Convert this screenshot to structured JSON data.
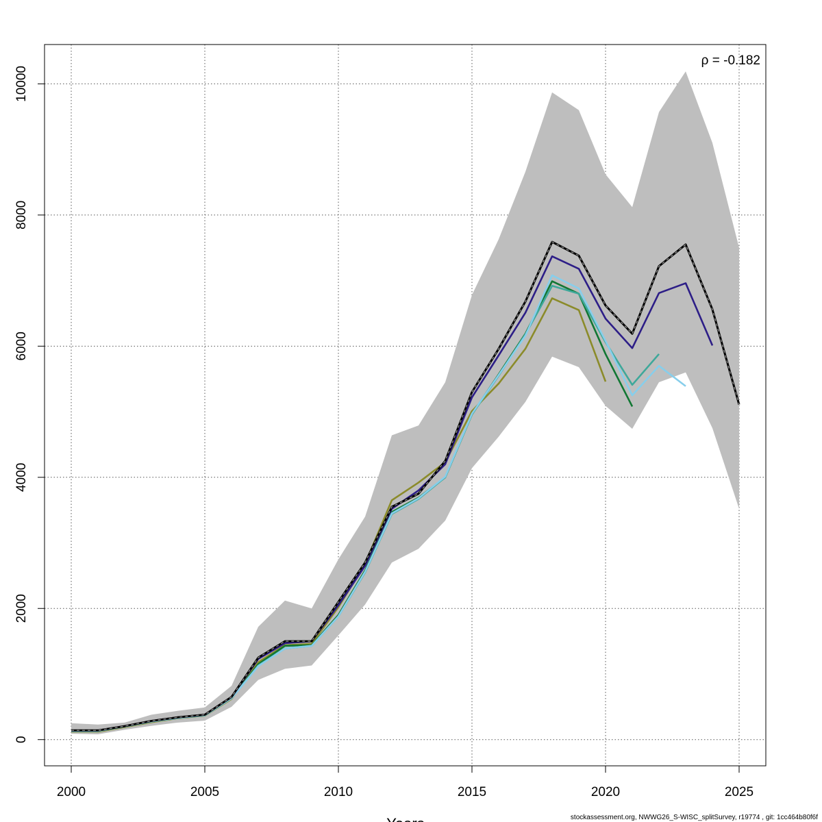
{
  "chart_data": {
    "type": "line",
    "xlabel": "Years",
    "ylabel": "",
    "xlim": [
      1999,
      2026
    ],
    "ylim": [
      -400,
      10600
    ],
    "x_ticks": [
      2000,
      2005,
      2010,
      2015,
      2020,
      2025
    ],
    "y_ticks": [
      0,
      2000,
      4000,
      6000,
      8000,
      10000
    ],
    "grid": true,
    "annotation": "ρ = -0.182",
    "footer": "stockassessment.org, NWWG26_S-WISC_splitSurvey, r19774 , git: 1cc464b80f6f",
    "colors": {
      "band": "#bebebe",
      "base": "#222222",
      "peel1": "#2d1e87",
      "peel2": "#87ceeb",
      "peel3": "#3ea89a",
      "peel4": "#117733",
      "peel5": "#8b8b2a"
    },
    "band": {
      "x": [
        2000,
        2001,
        2002,
        2003,
        2004,
        2005,
        2006,
        2007,
        2008,
        2009,
        2010,
        2011,
        2012,
        2013,
        2014,
        2015,
        2016,
        2017,
        2018,
        2019,
        2020,
        2021,
        2022,
        2023,
        2024,
        2025
      ],
      "upper": [
        250,
        230,
        260,
        380,
        440,
        490,
        820,
        1720,
        2120,
        2000,
        2750,
        3400,
        4640,
        4790,
        5450,
        6780,
        7630,
        8660,
        9870,
        9600,
        8620,
        8120,
        9570,
        10190,
        9100,
        7500
      ],
      "lower": [
        90,
        80,
        150,
        210,
        260,
        290,
        500,
        910,
        1080,
        1130,
        1590,
        2060,
        2700,
        2910,
        3340,
        4140,
        4620,
        5150,
        5840,
        5680,
        5090,
        4740,
        5450,
        5600,
        4750,
        3520
      ]
    },
    "series": [
      {
        "key": "base",
        "x": [
          2000,
          2001,
          2002,
          2003,
          2004,
          2005,
          2006,
          2007,
          2008,
          2009,
          2010,
          2011,
          2012,
          2013,
          2014,
          2015,
          2016,
          2017,
          2018,
          2019,
          2020,
          2021,
          2022,
          2023,
          2024,
          2025
        ],
        "values": [
          140,
          140,
          205,
          285,
          340,
          380,
          650,
          1250,
          1500,
          1500,
          2100,
          2700,
          3550,
          3750,
          4250,
          5300,
          5960,
          6680,
          7590,
          7380,
          6620,
          6190,
          7220,
          7550,
          6560,
          5110
        ]
      },
      {
        "key": "peel1",
        "x": [
          2000,
          2001,
          2002,
          2003,
          2004,
          2005,
          2006,
          2007,
          2008,
          2009,
          2010,
          2011,
          2012,
          2013,
          2014,
          2015,
          2016,
          2017,
          2018,
          2019,
          2020,
          2021,
          2022,
          2023,
          2024
        ],
        "values": [
          140,
          140,
          205,
          285,
          340,
          380,
          650,
          1230,
          1470,
          1500,
          2050,
          2650,
          3520,
          3800,
          4200,
          5220,
          5860,
          6510,
          7370,
          7180,
          6420,
          5970,
          6810,
          6960,
          6010
        ]
      },
      {
        "key": "peel2",
        "x": [
          2000,
          2001,
          2002,
          2003,
          2004,
          2005,
          2006,
          2007,
          2008,
          2009,
          2010,
          2011,
          2012,
          2013,
          2014,
          2015,
          2016,
          2017,
          2018,
          2019,
          2020,
          2021,
          2022,
          2023
        ],
        "values": [
          130,
          130,
          200,
          275,
          330,
          370,
          630,
          1120,
          1390,
          1430,
          1880,
          2560,
          3450,
          3680,
          4010,
          4970,
          5560,
          6160,
          7080,
          6880,
          6080,
          5250,
          5700,
          5390
        ]
      },
      {
        "key": "peel3",
        "x": [
          2000,
          2001,
          2002,
          2003,
          2004,
          2005,
          2006,
          2007,
          2008,
          2009,
          2010,
          2011,
          2012,
          2013,
          2014,
          2015,
          2016,
          2017,
          2018,
          2019,
          2020,
          2021,
          2022
        ],
        "values": [
          130,
          130,
          200,
          275,
          330,
          370,
          630,
          1130,
          1390,
          1430,
          1880,
          2550,
          3440,
          3670,
          4000,
          4960,
          5550,
          6180,
          6920,
          6800,
          6060,
          5410,
          5880
        ]
      },
      {
        "key": "peel4",
        "x": [
          2000,
          2001,
          2002,
          2003,
          2004,
          2005,
          2006,
          2007,
          2008,
          2009,
          2010,
          2011,
          2012,
          2013,
          2014,
          2015,
          2016,
          2017,
          2018,
          2019,
          2020,
          2021
        ],
        "values": [
          130,
          130,
          200,
          275,
          330,
          370,
          630,
          1150,
          1430,
          1440,
          1900,
          2580,
          3470,
          3690,
          4000,
          4960,
          5570,
          6190,
          6990,
          6800,
          5880,
          5080
        ]
      },
      {
        "key": "peel5",
        "x": [
          2000,
          2001,
          2002,
          2003,
          2004,
          2005,
          2006,
          2007,
          2008,
          2009,
          2010,
          2011,
          2012,
          2013,
          2014,
          2015,
          2016,
          2017,
          2018,
          2019,
          2020
        ],
        "values": [
          120,
          120,
          190,
          265,
          325,
          365,
          620,
          1180,
          1440,
          1460,
          2020,
          2680,
          3650,
          3920,
          4230,
          5010,
          5430,
          5960,
          6730,
          6550,
          5460
        ]
      }
    ]
  }
}
